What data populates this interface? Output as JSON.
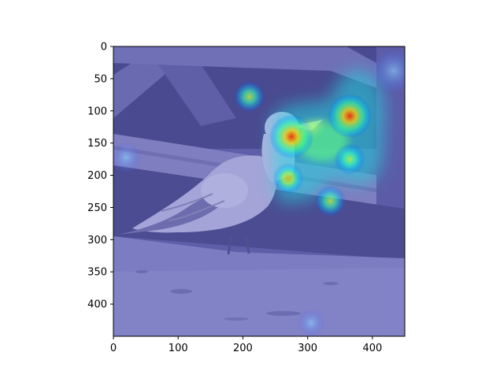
{
  "chart_data": {
    "type": "heatmap",
    "description": "Attention heatmap (jet colormap, semi-transparent) overlaid on a grayscale photo of a seagull standing on sand in front of wooden beams",
    "image_width_units": 450,
    "image_height_units": 450,
    "xlim": [
      0,
      450
    ],
    "ylim": [
      450,
      0
    ],
    "x_ticks": [
      0,
      100,
      200,
      300,
      400
    ],
    "y_ticks": [
      0,
      50,
      100,
      150,
      200,
      250,
      300,
      350,
      400
    ],
    "x_tick_labels": [
      "0",
      "100",
      "200",
      "300",
      "400"
    ],
    "y_tick_labels": [
      "0",
      "50",
      "100",
      "150",
      "200",
      "250",
      "300",
      "350",
      "400"
    ],
    "colormap": "jet",
    "hotspots": [
      {
        "x": 365,
        "y": 108,
        "intensity": 0.95
      },
      {
        "x": 275,
        "y": 140,
        "intensity": 0.95
      },
      {
        "x": 365,
        "y": 175,
        "intensity": 0.6
      },
      {
        "x": 270,
        "y": 205,
        "intensity": 0.65
      },
      {
        "x": 335,
        "y": 240,
        "intensity": 0.6
      },
      {
        "x": 210,
        "y": 78,
        "intensity": 0.6
      }
    ],
    "title": "",
    "xlabel": "",
    "ylabel": ""
  }
}
